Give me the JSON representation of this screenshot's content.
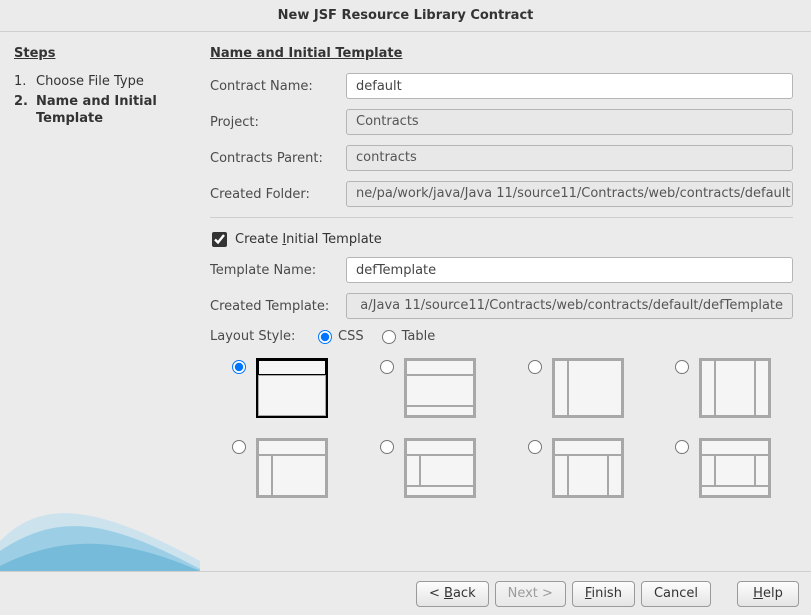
{
  "title": "New JSF Resource Library Contract",
  "steps": {
    "heading": "Steps",
    "items": [
      {
        "num": "1.",
        "label": "Choose File Type",
        "current": false
      },
      {
        "num": "2.",
        "label": "Name and Initial Template",
        "current": true
      }
    ]
  },
  "section": {
    "heading": "Name and Initial Template",
    "contract_name_label": "Contract Name:",
    "contract_name_value": "default",
    "project_label": "Project:",
    "project_value": "Contracts",
    "parent_label": "Contracts Parent:",
    "parent_value": "contracts",
    "folder_label": "Created Folder:",
    "folder_value": "ne/pa/work/java/Java 11/source11/Contracts/web/contracts/default",
    "create_initial_label_pre": "Create ",
    "create_initial_mnemonic": "I",
    "create_initial_label_post": "nitial Template",
    "create_initial_checked": true,
    "template_name_label": "Template Name:",
    "template_name_value": "defTemplate",
    "created_template_label": "Created Template:",
    "created_template_value": "a/Java 11/source11/Contracts/web/contracts/default/defTemplate",
    "layout_style_label": "Layout Style:",
    "layout_css_label": "CSS",
    "layout_table_label": "Table",
    "layout_selected": "css",
    "layouts": [
      {
        "id": "l1",
        "selected": true,
        "head": true,
        "left": false,
        "right": false,
        "foot": false
      },
      {
        "id": "l2",
        "selected": false,
        "head": true,
        "left": false,
        "right": false,
        "foot": true
      },
      {
        "id": "l3",
        "selected": false,
        "head": false,
        "left": true,
        "right": false,
        "foot": false
      },
      {
        "id": "l4",
        "selected": false,
        "head": false,
        "left": true,
        "right": true,
        "foot": false
      },
      {
        "id": "l5",
        "selected": false,
        "head": true,
        "left": true,
        "right": false,
        "foot": false
      },
      {
        "id": "l6",
        "selected": false,
        "head": true,
        "left": true,
        "right": false,
        "foot": true
      },
      {
        "id": "l7",
        "selected": false,
        "head": true,
        "left": true,
        "right": true,
        "foot": false
      },
      {
        "id": "l8",
        "selected": false,
        "head": true,
        "left": true,
        "right": true,
        "foot": true
      }
    ]
  },
  "buttons": {
    "back_pre": "< ",
    "back_m": "B",
    "back_post": "ack",
    "next": "Next >",
    "finish_m": "F",
    "finish_post": "inish",
    "cancel": "Cancel",
    "help_m": "H",
    "help_post": "elp"
  },
  "colors": {
    "background": "#ebebeb",
    "border": "#b5b5b5",
    "wave": "#7bbfe0"
  }
}
